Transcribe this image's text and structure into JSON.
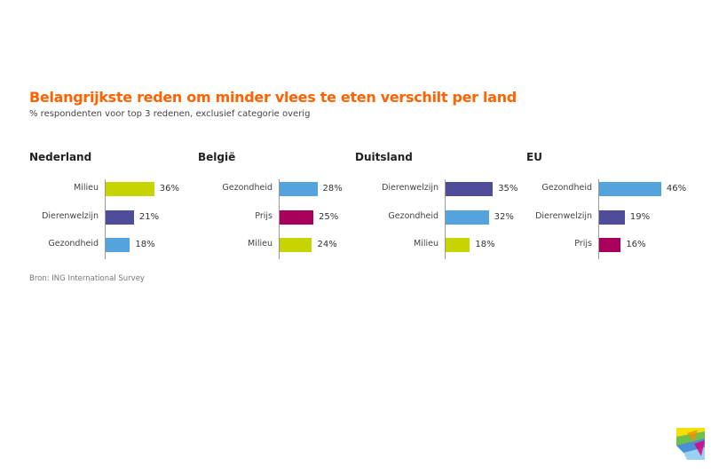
{
  "chart_data": {
    "type": "bar",
    "title": "Belangrijkste reden om minder vlees te eten verschilt per land",
    "subtitle": "% respondenten voor top 3 redenen, exclusief categorie overig",
    "source": "Bron: ING International Survey",
    "colors": {
      "Milieu": "#c8d400",
      "Dierenwelzijn": "#4f4c9a",
      "Gezondheid": "#55a3dd",
      "Prijs": "#a8005a"
    },
    "panels": [
      {
        "name": "Nederland",
        "categories": [
          "Milieu",
          "Dierenwelzijn",
          "Gezondheid"
        ],
        "values": [
          36,
          21,
          18
        ],
        "value_labels": [
          "36%",
          "21%",
          "18%"
        ]
      },
      {
        "name": "België",
        "categories": [
          "Gezondheid",
          "Prijs",
          "Milieu"
        ],
        "values": [
          28,
          25,
          24
        ],
        "value_labels": [
          "28%",
          "25%",
          "24%"
        ]
      },
      {
        "name": "Duitsland",
        "categories": [
          "Dierenwelzijn",
          "Gezondheid",
          "Milieu"
        ],
        "values": [
          35,
          32,
          18
        ],
        "value_labels": [
          "35%",
          "32%",
          "18%"
        ]
      },
      {
        "name": "EU",
        "categories": [
          "Gezondheid",
          "Dierenwelzijn",
          "Prijs"
        ],
        "values": [
          46,
          19,
          16
        ],
        "value_labels": [
          "46%",
          "19%",
          "16%"
        ]
      }
    ]
  },
  "logo": {
    "icon": "colorful-triangles-logo-icon",
    "colors": [
      "#f5e000",
      "#6fbf4a",
      "#4a90d9",
      "#e4007c",
      "#f39200"
    ]
  }
}
